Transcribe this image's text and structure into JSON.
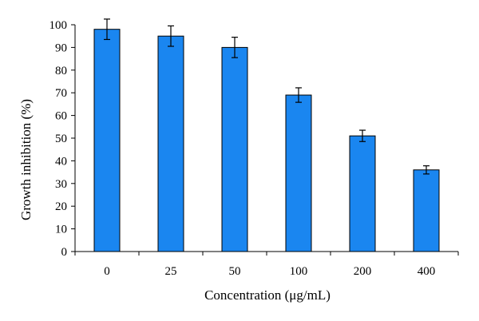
{
  "chart_data": {
    "type": "bar",
    "categories": [
      "0",
      "25",
      "50",
      "100",
      "200",
      "400"
    ],
    "values": [
      98,
      95,
      90,
      69,
      51,
      36
    ],
    "errors": [
      4.5,
      4.5,
      4.5,
      3.2,
      2.5,
      1.8
    ],
    "xlabel": "Concentration (μg/mL)",
    "ylabel": "Growth inhibition (%)",
    "ylim": [
      0,
      100
    ],
    "yticks": [
      "0",
      "10",
      "20",
      "30",
      "40",
      "50",
      "60",
      "70",
      "80",
      "90",
      "100"
    ],
    "bar_color": "#1a86f0",
    "grid": false
  }
}
